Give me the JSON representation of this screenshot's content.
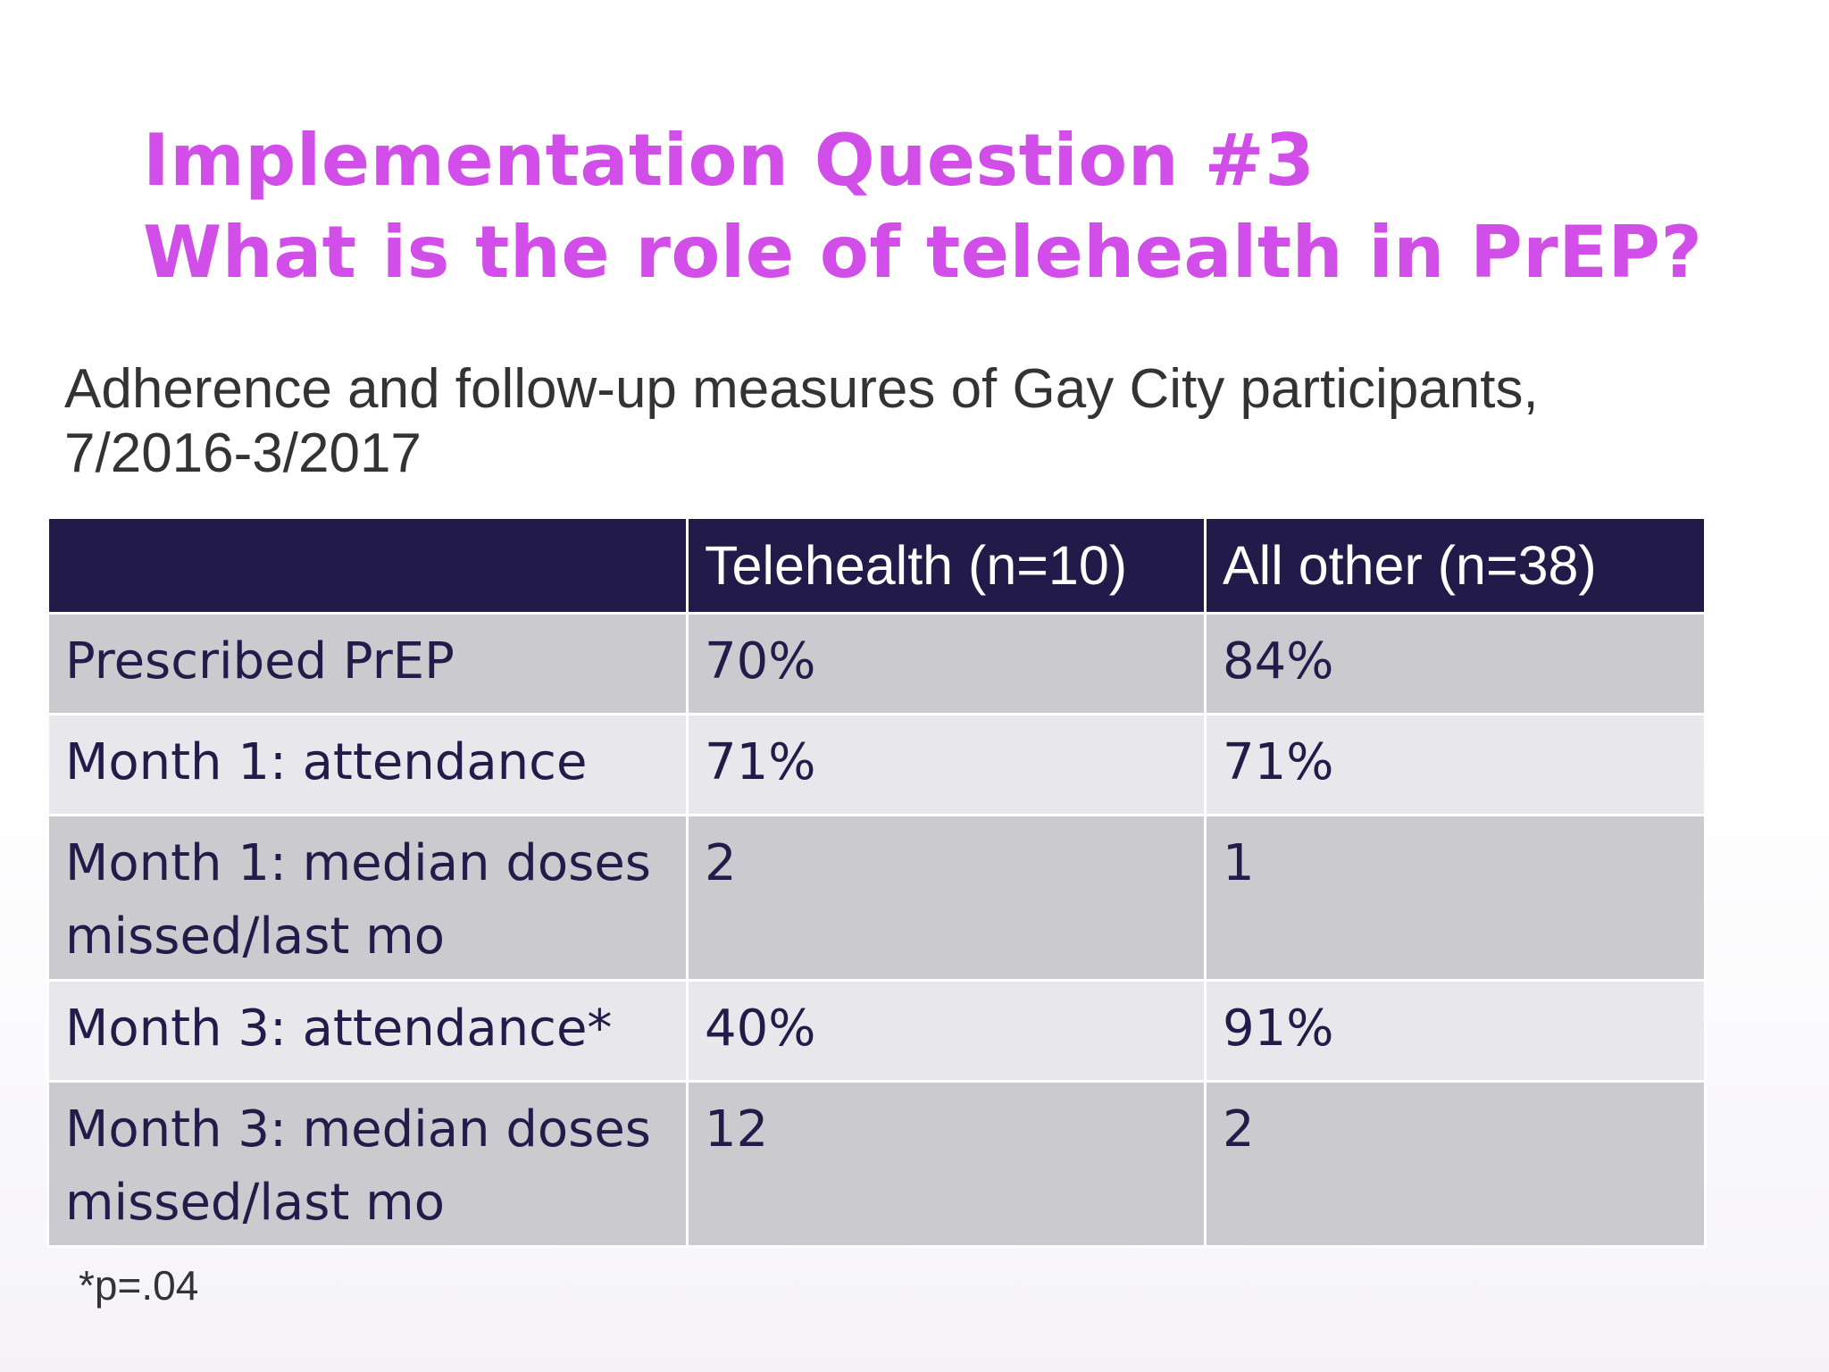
{
  "title": {
    "line1": "Implementation Question #3",
    "line2": "What is the role of telehealth in PrEP?"
  },
  "subtitle": {
    "line1": "Adherence and follow-up measures of Gay City participants,",
    "line2": "7/2016-3/2017"
  },
  "table": {
    "headers": [
      "",
      "Telehealth (n=10)",
      "All other (n=38)"
    ],
    "rows": [
      {
        "label": "Prescribed PrEP",
        "telehealth": "70%",
        "other": "84%"
      },
      {
        "label": "Month 1: attendance",
        "telehealth": "71%",
        "other": "71%"
      },
      {
        "label": "Month 1: median doses missed/last mo",
        "telehealth": "2",
        "other": "1"
      },
      {
        "label": "Month 3: attendance*",
        "telehealth": "40%",
        "other": "91%"
      },
      {
        "label": "Month 3: median doses missed/last mo",
        "telehealth": "12",
        "other": "2"
      }
    ]
  },
  "footnote": "*p=.04",
  "colors": {
    "title": "#d14fe8",
    "header_bg": "#221b4a",
    "row_dark": "#cbcacf",
    "row_light": "#e8e7ec",
    "table_text": "#231c4a"
  }
}
